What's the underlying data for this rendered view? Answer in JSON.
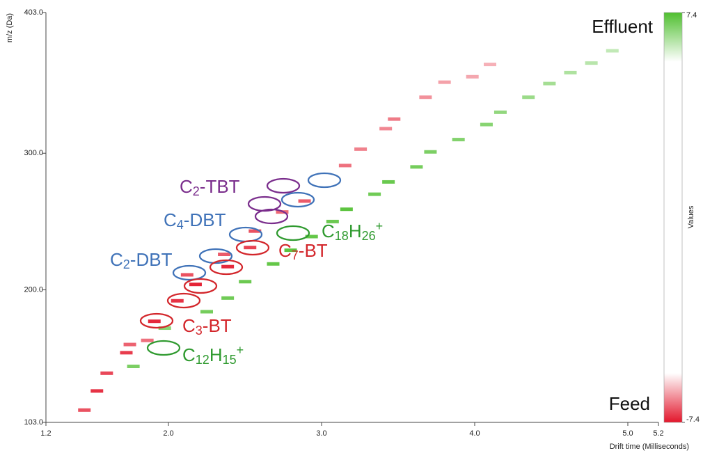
{
  "chart_data": {
    "type": "heatmap",
    "x_label": "Drift time (Milliseconds)",
    "y_label": "m/z (Da)",
    "xlim": [
      1.2,
      5.2
    ],
    "xticks": [
      1.2,
      {
        "value": 2,
        "label": "2.0"
      },
      {
        "value": 3,
        "label": "3.0"
      },
      {
        "value": 4,
        "label": "4.0"
      },
      {
        "value": 5,
        "label": "5.0"
      },
      5.2
    ],
    "ylim": [
      103,
      403
    ],
    "yticks": [
      {
        "value": 103,
        "label": "103.0"
      },
      {
        "value": 200,
        "label": "200.0"
      },
      {
        "value": 300,
        "label": "300.0"
      },
      {
        "value": 403,
        "label": "403.0"
      }
    ],
    "colorbar": {
      "label": "Values",
      "clim": [
        -7.4,
        7.4
      ],
      "cticks": [
        -7.4,
        7.4
      ],
      "colors": [
        "#e3162b",
        "#ffffff",
        "#4fbf2f"
      ]
    },
    "cells": {
      "x": [
        1.451,
        1.533,
        1.597,
        1.725,
        1.748,
        1.862,
        1.908,
        2.058,
        2.177,
        2.122,
        2.387,
        2.364,
        2.533,
        2.565,
        2.743,
        2.889,
        3.154,
        3.255,
        3.419,
        3.474,
        3.679,
        3.803,
        3.985,
        4.1,
        1.771,
        1.976,
        2.25,
        2.387,
        2.501,
        2.684,
        2.798,
        2.935,
        3.072,
        3.163,
        3.346,
        3.437,
        3.62,
        3.711,
        3.894,
        4.077,
        4.168,
        4.351,
        4.488,
        4.625,
        4.762,
        4.899
      ],
      "y": [
        112,
        126,
        139,
        154,
        160,
        163,
        177,
        192,
        204,
        211,
        217,
        226,
        231,
        243,
        257,
        265,
        291,
        303,
        318,
        325,
        341,
        352,
        356,
        365,
        144,
        172,
        184,
        194,
        206,
        219,
        229,
        239,
        250,
        259,
        270,
        279,
        290,
        301,
        310,
        321,
        330,
        341,
        351,
        359,
        366,
        375
      ],
      "values": [
        -5.5,
        -6.5,
        -5.8,
        -6.2,
        -5,
        -4.5,
        -6.8,
        -6.5,
        -7,
        -5.5,
        -6.8,
        -5.2,
        -6,
        -5.5,
        -4.8,
        -5.2,
        -4.5,
        -4,
        -3.8,
        -4.2,
        -3.5,
        -3,
        -2.8,
        -2.5,
        5.5,
        5,
        5.8,
        6,
        6.2,
        6.5,
        6.8,
        6.5,
        6.2,
        6.8,
        6,
        6.3,
        5.8,
        5.5,
        5.2,
        5,
        4.6,
        4.2,
        3.8,
        3.4,
        3,
        2.6
      ]
    },
    "annotations": [
      {
        "color": "#7a2d8c",
        "parts": [
          {
            "text": "C"
          },
          {
            "sub": "2"
          },
          {
            "text": "-TBT"
          }
        ]
      },
      {
        "color": "#3f72b8",
        "parts": [
          {
            "text": "C"
          },
          {
            "sub": "4"
          },
          {
            "text": "-DBT"
          }
        ]
      },
      {
        "color": "#2f9a2f",
        "parts": [
          {
            "text": "C"
          },
          {
            "sub": "18"
          },
          {
            "text": "H"
          },
          {
            "sub": "26"
          },
          {
            "sup": "+"
          }
        ]
      },
      {
        "color": "#d3262b",
        "parts": [
          {
            "text": "C"
          },
          {
            "sub": "7"
          },
          {
            "text": "-BT"
          }
        ]
      },
      {
        "color": "#3f72b8",
        "parts": [
          {
            "text": "C"
          },
          {
            "sub": "2"
          },
          {
            "text": "-DBT"
          }
        ]
      },
      {
        "color": "#d3262b",
        "parts": [
          {
            "text": "C"
          },
          {
            "sub": "3"
          },
          {
            "text": "-BT"
          }
        ]
      },
      {
        "color": "#2f9a2f",
        "parts": [
          {
            "text": "C"
          },
          {
            "sub": "12"
          },
          {
            "text": "H"
          },
          {
            "sub": "15"
          },
          {
            "sup": "+"
          }
        ]
      }
    ],
    "corner_labels": {
      "top": "Effluent",
      "bottom": "Feed"
    }
  }
}
